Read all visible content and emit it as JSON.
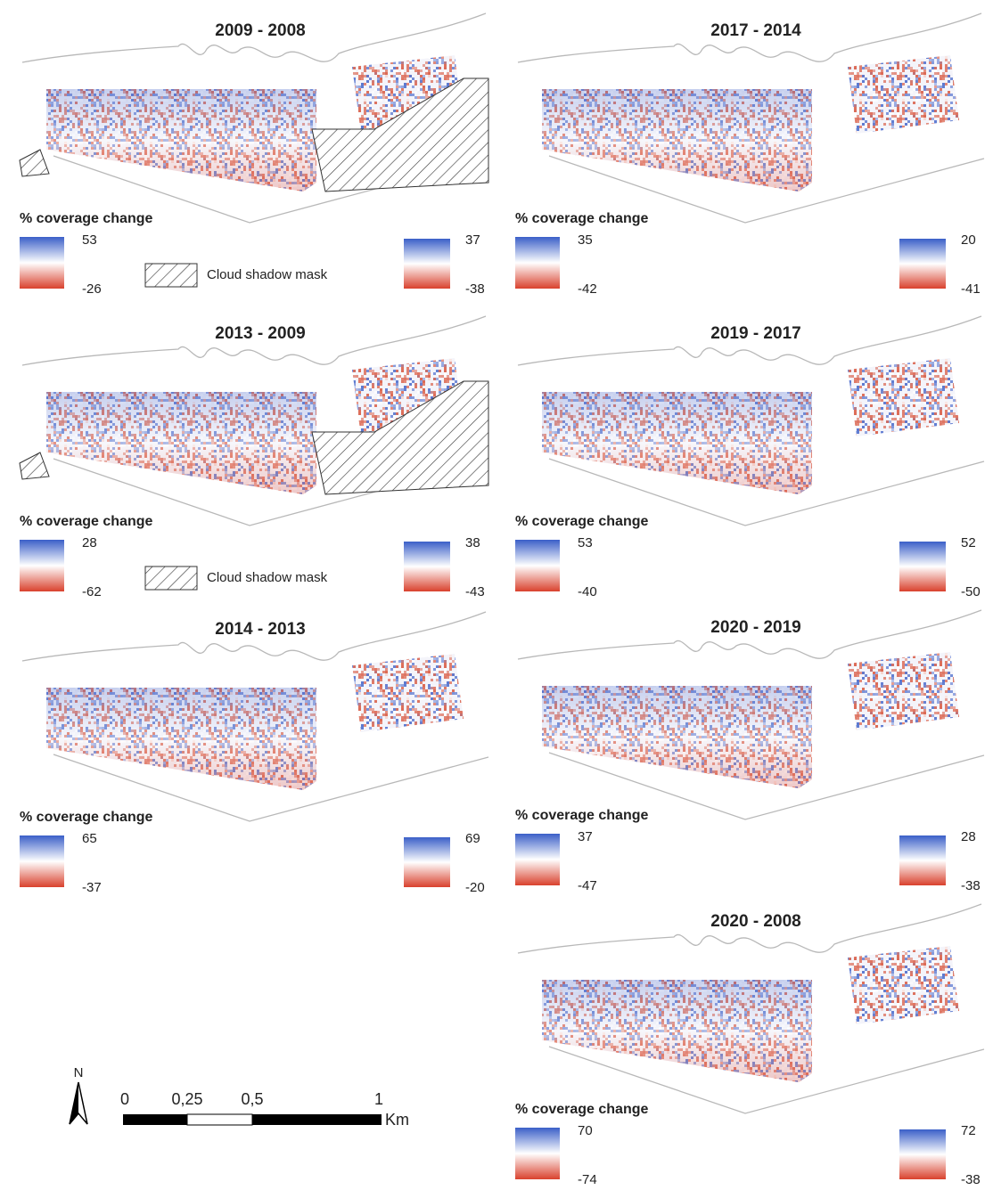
{
  "panels": [
    {
      "title": "2009 - 2008",
      "legend_title": "% coverage change",
      "left_max": 53,
      "left_min": -26,
      "right_max": 37,
      "right_min": -38,
      "mask_label": "Cloud shadow mask"
    },
    {
      "title": "2017 - 2014",
      "legend_title": "% coverage change",
      "left_max": 35,
      "left_min": -42,
      "right_max": 20,
      "right_min": -41
    },
    {
      "title": "2013 - 2009",
      "legend_title": "% coverage change",
      "left_max": 28,
      "left_min": -62,
      "right_max": 38,
      "right_min": -43,
      "mask_label": "Cloud shadow mask"
    },
    {
      "title": "2019 - 2017",
      "legend_title": "% coverage change",
      "left_max": 53,
      "left_min": -40,
      "right_max": 52,
      "right_min": -50
    },
    {
      "title": "2014 - 2013",
      "legend_title": "% coverage change",
      "left_max": 65,
      "left_min": -37,
      "right_max": 69,
      "right_min": -20
    },
    {
      "title": "2020 - 2019",
      "legend_title": "% coverage change",
      "left_max": 37,
      "left_min": -47,
      "right_max": 28,
      "right_min": -38
    },
    {
      "title": "2020 - 2008",
      "legend_title": "% coverage change",
      "left_max": 70,
      "left_min": -74,
      "right_max": 72,
      "right_min": -38
    }
  ],
  "scale_bar": {
    "north": "N",
    "labels": [
      "0",
      "0,25",
      "0,5",
      "1"
    ],
    "unit": "Km"
  }
}
